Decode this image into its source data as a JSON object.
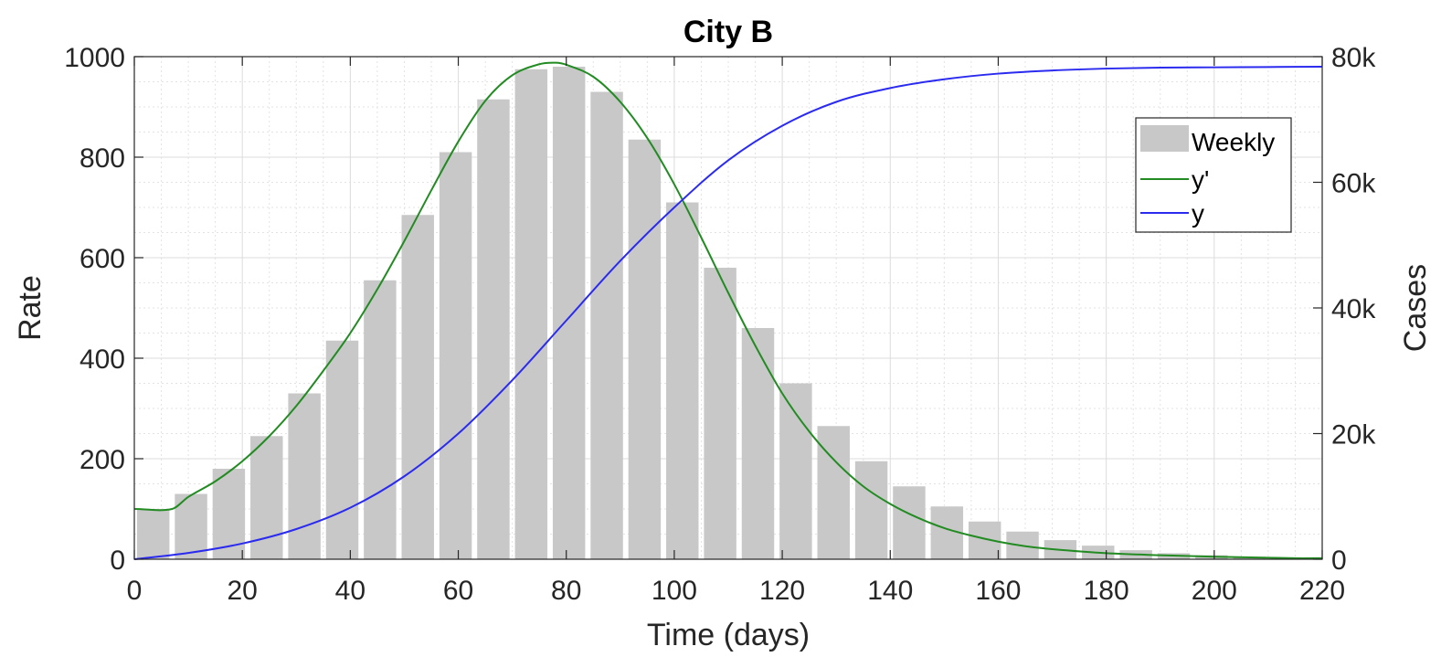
{
  "chart_data": {
    "type": "bar+line",
    "title": "City B",
    "xlabel": "Time (days)",
    "ylabel_left": "Rate",
    "ylabel_right": "Cases",
    "xlim": [
      0,
      220
    ],
    "ylim_left": [
      0,
      1000
    ],
    "ylim_right": [
      0,
      80000
    ],
    "x_ticks": [
      "0",
      "20",
      "40",
      "60",
      "80",
      "100",
      "120",
      "140",
      "160",
      "180",
      "200",
      "220"
    ],
    "y_left_ticks": [
      "0",
      "200",
      "400",
      "600",
      "800",
      "1000"
    ],
    "y_right_ticks": [
      "0",
      "20k",
      "40k",
      "60k",
      "80k"
    ],
    "grid": "on (major and minor)",
    "legend_position": "top-right",
    "colors": {
      "bars": "#c8c8c8",
      "y_prime": "#228b22",
      "y": "#2b2bf0"
    },
    "legend": [
      {
        "label": "Weekly",
        "kind": "bar"
      },
      {
        "label": "y'",
        "kind": "line"
      },
      {
        "label": "y",
        "kind": "line"
      }
    ],
    "bars": {
      "name": "Weekly",
      "x": [
        3.5,
        10.5,
        17.5,
        24.5,
        31.5,
        38.5,
        45.5,
        52.5,
        59.5,
        66.5,
        73.5,
        80.5,
        87.5,
        94.5,
        101.5,
        108.5,
        115.5,
        122.5,
        129.5,
        136.5,
        143.5,
        150.5,
        157.5,
        164.5,
        171.5,
        178.5,
        185.5,
        192.5,
        199.5,
        206.5,
        213.5
      ],
      "values": [
        100,
        130,
        180,
        245,
        330,
        435,
        555,
        685,
        810,
        915,
        975,
        980,
        930,
        835,
        710,
        580,
        460,
        350,
        265,
        195,
        145,
        105,
        75,
        55,
        38,
        27,
        18,
        12,
        8,
        5,
        3
      ]
    },
    "series": [
      {
        "name": "y'",
        "axis": "left",
        "x": [
          0,
          7,
          10,
          15,
          20,
          25,
          30,
          35,
          40,
          45,
          50,
          55,
          60,
          65,
          70,
          75,
          78,
          80,
          85,
          90,
          95,
          100,
          105,
          110,
          115,
          120,
          125,
          130,
          135,
          140,
          145,
          150,
          155,
          160,
          165,
          170,
          180,
          190,
          200,
          210,
          215,
          220
        ],
        "values": [
          100,
          100,
          124,
          155,
          195,
          245,
          305,
          375,
          450,
          537,
          633,
          734,
          831,
          912,
          963,
          985,
          988,
          984,
          960,
          910,
          838,
          746,
          640,
          530,
          425,
          330,
          254,
          193,
          145,
          110,
          83,
          62,
          47,
          35,
          26,
          20,
          12,
          8,
          5,
          3,
          2,
          2
        ]
      },
      {
        "name": "y",
        "axis": "right",
        "x": [
          0,
          10,
          20,
          30,
          40,
          50,
          60,
          70,
          80,
          90,
          100,
          110,
          120,
          130,
          140,
          150,
          160,
          170,
          180,
          190,
          200,
          210,
          220
        ],
        "values": [
          0,
          1000,
          2500,
          4800,
          8200,
          13200,
          20000,
          28500,
          38000,
          47500,
          56000,
          63500,
          69000,
          72800,
          75000,
          76400,
          77300,
          77800,
          78100,
          78250,
          78300,
          78350,
          78400
        ]
      }
    ]
  }
}
